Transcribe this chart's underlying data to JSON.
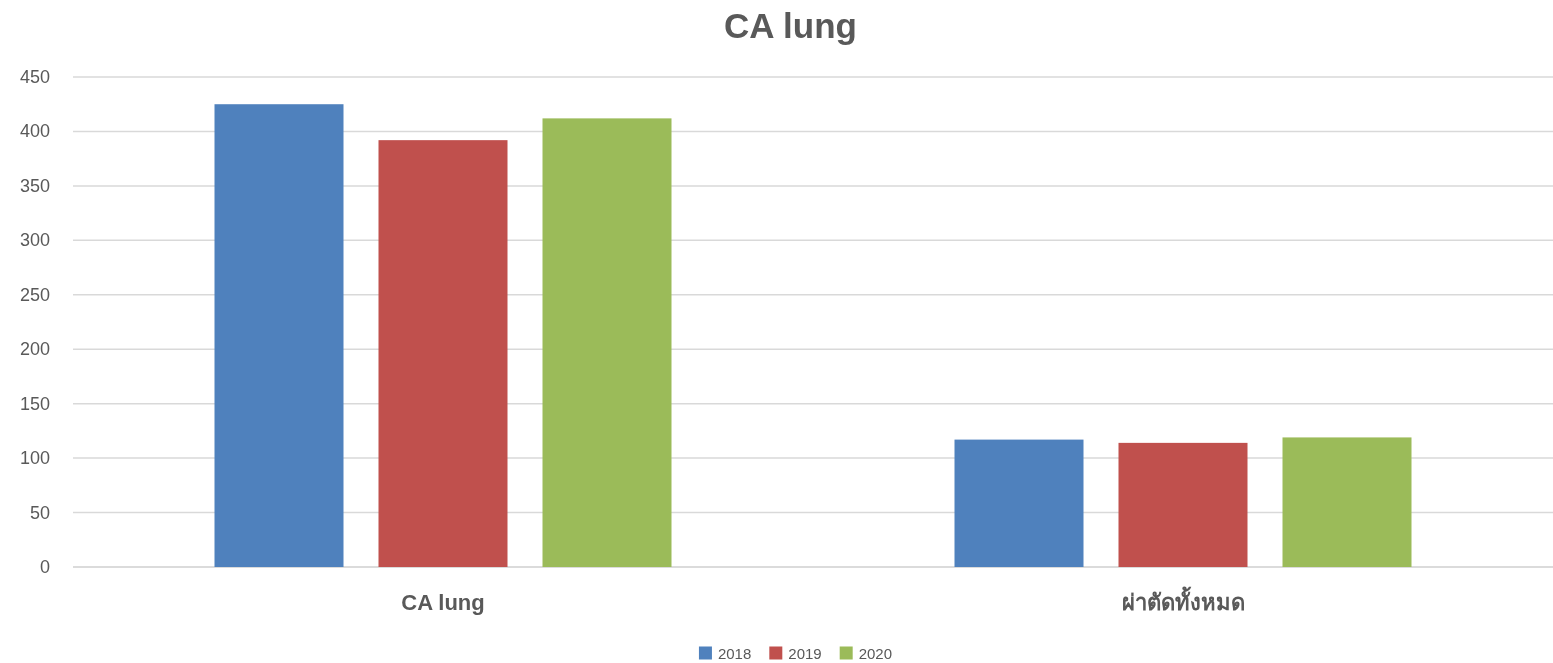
{
  "chart_data": {
    "type": "bar",
    "title": "CA lung",
    "categories": [
      "CA lung",
      "ผ่าตัดทั้งหมด"
    ],
    "series": [
      {
        "name": "2018",
        "color": "#4f81bd",
        "values": [
          425,
          117
        ]
      },
      {
        "name": "2019",
        "color": "#c0504d",
        "values": [
          392,
          114
        ]
      },
      {
        "name": "2020",
        "color": "#9bbb59",
        "values": [
          412,
          119
        ]
      }
    ],
    "ylim": [
      0,
      450
    ],
    "yticks": [
      0,
      50,
      100,
      150,
      200,
      250,
      300,
      350,
      400,
      450
    ],
    "grid": "y",
    "legend": "bottom"
  }
}
